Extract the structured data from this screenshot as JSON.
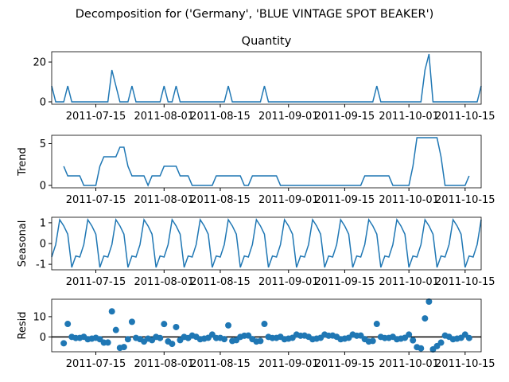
{
  "title": "Decomposition for ('Germany', 'BLUE VINTAGE SPOT BEAKER')",
  "chart_data": [
    {
      "type": "line",
      "title": "Quantity",
      "color": "#1f77b4",
      "x": [
        "2011-07-04",
        "2011-07-05",
        "2011-07-06",
        "2011-07-07",
        "2011-07-08",
        "2011-07-09",
        "2011-07-10",
        "2011-07-11",
        "2011-07-12",
        "2011-07-13",
        "2011-07-14",
        "2011-07-15",
        "2011-07-16",
        "2011-07-17",
        "2011-07-18",
        "2011-07-19",
        "2011-07-20",
        "2011-07-21",
        "2011-07-22",
        "2011-07-23",
        "2011-07-24",
        "2011-07-25",
        "2011-07-26",
        "2011-07-27",
        "2011-07-28",
        "2011-07-29",
        "2011-07-30",
        "2011-07-31",
        "2011-08-01",
        "2011-08-02",
        "2011-08-03",
        "2011-08-04",
        "2011-08-05",
        "2011-08-06",
        "2011-08-07",
        "2011-08-08",
        "2011-08-09",
        "2011-08-10",
        "2011-08-11",
        "2011-08-12",
        "2011-08-13",
        "2011-08-14",
        "2011-08-15",
        "2011-08-16",
        "2011-08-17",
        "2011-08-18",
        "2011-08-19",
        "2011-08-20",
        "2011-08-21",
        "2011-08-22",
        "2011-08-23",
        "2011-08-24",
        "2011-08-25",
        "2011-08-26",
        "2011-08-27",
        "2011-08-28",
        "2011-08-29",
        "2011-08-30",
        "2011-08-31",
        "2011-09-01",
        "2011-09-02",
        "2011-09-03",
        "2011-09-04",
        "2011-09-05",
        "2011-09-06",
        "2011-09-07",
        "2011-09-08",
        "2011-09-09",
        "2011-09-10",
        "2011-09-11",
        "2011-09-12",
        "2011-09-13",
        "2011-09-14",
        "2011-09-15",
        "2011-09-16",
        "2011-09-17",
        "2011-09-18",
        "2011-09-19",
        "2011-09-20",
        "2011-09-21",
        "2011-09-22",
        "2011-09-23",
        "2011-09-24",
        "2011-09-25",
        "2011-09-26",
        "2011-09-27",
        "2011-09-28",
        "2011-09-29",
        "2011-09-30",
        "2011-10-01",
        "2011-10-02",
        "2011-10-03",
        "2011-10-04",
        "2011-10-05",
        "2011-10-06",
        "2011-10-07",
        "2011-10-08",
        "2011-10-09",
        "2011-10-10",
        "2011-10-11",
        "2011-10-12",
        "2011-10-13",
        "2011-10-14",
        "2011-10-15",
        "2011-10-16",
        "2011-10-17",
        "2011-10-18",
        "2011-10-19"
      ],
      "xlim": [
        "2011-07-04",
        "2011-10-19"
      ],
      "xticks": [
        "2011-07-15",
        "2011-08-01",
        "2011-08-15",
        "2011-09-01",
        "2011-09-15",
        "2011-10-01",
        "2011-10-15"
      ],
      "values": [
        8,
        0,
        0,
        0,
        8,
        0,
        0,
        0,
        0,
        0,
        0,
        0,
        0,
        0,
        0,
        16,
        8,
        0,
        0,
        0,
        8,
        0,
        0,
        0,
        0,
        0,
        0,
        0,
        8,
        0,
        0,
        8,
        0,
        0,
        0,
        0,
        0,
        0,
        0,
        0,
        0,
        0,
        0,
        0,
        8,
        0,
        0,
        0,
        0,
        0,
        0,
        0,
        0,
        8,
        0,
        0,
        0,
        0,
        0,
        0,
        0,
        0,
        0,
        0,
        0,
        0,
        0,
        0,
        0,
        0,
        0,
        0,
        0,
        0,
        0,
        0,
        0,
        0,
        0,
        0,
        0,
        8,
        0,
        0,
        0,
        0,
        0,
        0,
        0,
        0,
        0,
        0,
        0,
        16,
        24,
        0,
        0,
        0,
        0,
        0,
        0,
        0,
        0,
        0,
        0,
        0,
        0,
        8
      ],
      "ylim": [
        -1.2,
        25.2
      ],
      "yticks": [
        0,
        20
      ]
    },
    {
      "type": "line",
      "ylabel": "Trend",
      "color": "#1f77b4",
      "values": [
        null,
        null,
        null,
        2.29,
        1.14,
        1.14,
        1.14,
        1.14,
        0,
        0,
        0,
        0,
        2.29,
        3.43,
        3.43,
        3.43,
        3.43,
        4.57,
        4.57,
        2.29,
        1.14,
        1.14,
        1.14,
        1.14,
        0,
        1.14,
        1.14,
        1.14,
        2.29,
        2.29,
        2.29,
        2.29,
        1.14,
        1.14,
        1.14,
        0,
        0,
        0,
        0,
        0,
        0,
        1.14,
        1.14,
        1.14,
        1.14,
        1.14,
        1.14,
        1.14,
        0,
        0,
        1.14,
        1.14,
        1.14,
        1.14,
        1.14,
        1.14,
        1.14,
        0,
        0,
        0,
        0,
        0,
        0,
        0,
        0,
        0,
        0,
        0,
        0,
        0,
        0,
        0,
        0,
        0,
        0,
        0,
        0,
        0,
        1.14,
        1.14,
        1.14,
        1.14,
        1.14,
        1.14,
        1.14,
        0,
        0,
        0,
        0,
        0,
        2.29,
        5.71,
        5.71,
        5.71,
        5.71,
        5.71,
        5.71,
        3.43,
        0,
        0,
        0,
        0,
        0,
        0,
        1.14,
        null,
        null,
        null
      ],
      "ylim": [
        -0.29,
        6.0
      ],
      "yticks": [
        0,
        5
      ]
    },
    {
      "type": "line",
      "ylabel": "Seasonal",
      "color": "#1f77b4",
      "values": [
        -0.65,
        -0.05,
        1.15,
        0.85,
        0.45,
        -1.15,
        -0.6,
        -0.65,
        -0.05,
        1.15,
        0.85,
        0.45,
        -1.15,
        -0.6,
        -0.65,
        -0.05,
        1.15,
        0.85,
        0.45,
        -1.15,
        -0.6,
        -0.65,
        -0.05,
        1.15,
        0.85,
        0.45,
        -1.15,
        -0.6,
        -0.65,
        -0.05,
        1.15,
        0.85,
        0.45,
        -1.15,
        -0.6,
        -0.65,
        -0.05,
        1.15,
        0.85,
        0.45,
        -1.15,
        -0.6,
        -0.65,
        -0.05,
        1.15,
        0.85,
        0.45,
        -1.15,
        -0.6,
        -0.65,
        -0.05,
        1.15,
        0.85,
        0.45,
        -1.15,
        -0.6,
        -0.65,
        -0.05,
        1.15,
        0.85,
        0.45,
        -1.15,
        -0.6,
        -0.65,
        -0.05,
        1.15,
        0.85,
        0.45,
        -1.15,
        -0.6,
        -0.65,
        -0.05,
        1.15,
        0.85,
        0.45,
        -1.15,
        -0.6,
        -0.65,
        -0.05,
        1.15,
        0.85,
        0.45,
        -1.15,
        -0.6,
        -0.65,
        -0.05,
        1.15,
        0.85,
        0.45,
        -1.15,
        -0.6,
        -0.65,
        -0.05,
        1.15,
        0.85,
        0.45,
        -1.15,
        -0.6,
        -0.65,
        -0.05,
        1.15,
        0.85,
        0.45,
        -1.15,
        -0.6,
        -0.65,
        -0.05,
        1.15
      ],
      "ylim": [
        -1.265,
        1.265
      ],
      "yticks": [
        -1,
        0,
        1
      ]
    },
    {
      "type": "scatter",
      "ylabel": "Resid",
      "color": "#1f77b4",
      "hline": 0,
      "values": [
        null,
        null,
        null,
        -3.14,
        6.41,
        0.01,
        -0.54,
        -0.49,
        0.05,
        -1.15,
        -0.85,
        -0.45,
        -1.14,
        -2.83,
        -2.78,
        12.62,
        3.42,
        -5.42,
        -5.02,
        -1.14,
        7.46,
        -0.49,
        -1.09,
        -2.29,
        -0.85,
        -1.59,
        0.01,
        -0.54,
        6.36,
        -2.24,
        -3.44,
        4.86,
        -1.59,
        0.01,
        -0.54,
        0.65,
        0.05,
        -1.15,
        -0.85,
        -0.45,
        1.15,
        -0.54,
        -0.49,
        -1.09,
        5.71,
        -1.99,
        -1.59,
        0.01,
        0.6,
        0.65,
        -1.09,
        -2.29,
        -1.99,
        6.41,
        0.01,
        -0.54,
        -0.49,
        0.05,
        -1.15,
        -0.85,
        -0.45,
        1.15,
        0.6,
        0.65,
        0.05,
        -1.15,
        -0.85,
        -0.45,
        1.15,
        0.6,
        0.65,
        0.05,
        -1.15,
        -0.85,
        -0.45,
        1.15,
        0.6,
        0.65,
        -1.09,
        -2.29,
        -1.99,
        6.41,
        0.01,
        -0.54,
        -0.49,
        0.05,
        -1.15,
        -0.85,
        -0.45,
        1.15,
        -1.69,
        -5.06,
        -5.66,
        9.14,
        17.44,
        -6.16,
        -4.56,
        -2.83,
        0.65,
        0.05,
        -1.15,
        -0.85,
        -0.45,
        1.15,
        -0.54,
        null,
        null,
        null
      ],
      "ylim": [
        -7.34,
        18.62
      ],
      "yticks": [
        0,
        10
      ]
    }
  ]
}
